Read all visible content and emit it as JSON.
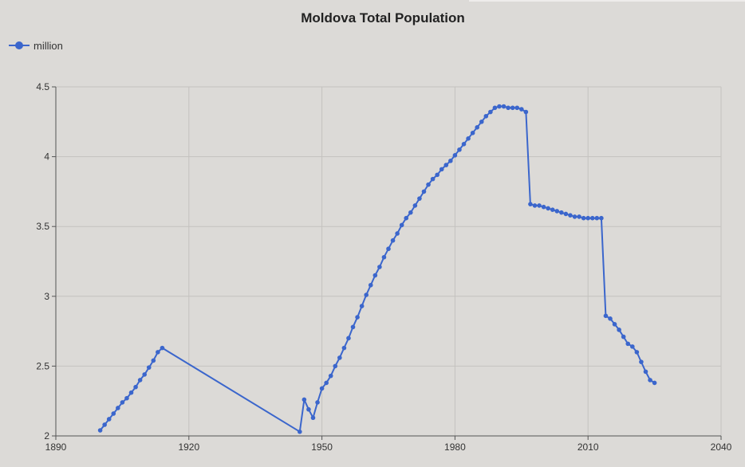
{
  "chart_data": {
    "type": "line",
    "title": "Moldova Total Population",
    "xlabel": "",
    "ylabel": "",
    "xlim": [
      1890,
      2040
    ],
    "ylim": [
      2,
      4.5
    ],
    "x_ticks": [
      "1890",
      "1920",
      "1950",
      "1980",
      "2010",
      "2040"
    ],
    "y_ticks": [
      "2",
      "2.5",
      "3",
      "3.5",
      "4",
      "4.5"
    ],
    "grid": true,
    "legend": "top-left",
    "series": [
      {
        "name": "million",
        "color": "#3b66cc",
        "marker": "circle",
        "points": [
          [
            1900,
            2.04
          ],
          [
            1901,
            2.08
          ],
          [
            1902,
            2.12
          ],
          [
            1903,
            2.16
          ],
          [
            1904,
            2.2
          ],
          [
            1905,
            2.24
          ],
          [
            1906,
            2.27
          ],
          [
            1907,
            2.31
          ],
          [
            1908,
            2.35
          ],
          [
            1909,
            2.4
          ],
          [
            1910,
            2.44
          ],
          [
            1911,
            2.49
          ],
          [
            1912,
            2.54
          ],
          [
            1913,
            2.6
          ],
          [
            1914,
            2.63
          ],
          [
            1945,
            2.03
          ],
          [
            1946,
            2.26
          ],
          [
            1947,
            2.19
          ],
          [
            1948,
            2.13
          ],
          [
            1949,
            2.24
          ],
          [
            1950,
            2.34
          ],
          [
            1951,
            2.38
          ],
          [
            1952,
            2.43
          ],
          [
            1953,
            2.5
          ],
          [
            1954,
            2.56
          ],
          [
            1955,
            2.63
          ],
          [
            1956,
            2.7
          ],
          [
            1957,
            2.78
          ],
          [
            1958,
            2.85
          ],
          [
            1959,
            2.93
          ],
          [
            1960,
            3.01
          ],
          [
            1961,
            3.08
          ],
          [
            1962,
            3.15
          ],
          [
            1963,
            3.21
          ],
          [
            1964,
            3.28
          ],
          [
            1965,
            3.34
          ],
          [
            1966,
            3.4
          ],
          [
            1967,
            3.45
          ],
          [
            1968,
            3.51
          ],
          [
            1969,
            3.56
          ],
          [
            1970,
            3.6
          ],
          [
            1971,
            3.65
          ],
          [
            1972,
            3.7
          ],
          [
            1973,
            3.75
          ],
          [
            1974,
            3.8
          ],
          [
            1975,
            3.84
          ],
          [
            1976,
            3.87
          ],
          [
            1977,
            3.91
          ],
          [
            1978,
            3.94
          ],
          [
            1979,
            3.97
          ],
          [
            1980,
            4.01
          ],
          [
            1981,
            4.05
          ],
          [
            1982,
            4.09
          ],
          [
            1983,
            4.13
          ],
          [
            1984,
            4.17
          ],
          [
            1985,
            4.21
          ],
          [
            1986,
            4.25
          ],
          [
            1987,
            4.29
          ],
          [
            1988,
            4.32
          ],
          [
            1989,
            4.35
          ],
          [
            1990,
            4.36
          ],
          [
            1991,
            4.36
          ],
          [
            1992,
            4.35
          ],
          [
            1993,
            4.35
          ],
          [
            1994,
            4.35
          ],
          [
            1995,
            4.34
          ],
          [
            1996,
            4.32
          ],
          [
            1997,
            3.66
          ],
          [
            1998,
            3.65
          ],
          [
            1999,
            3.65
          ],
          [
            2000,
            3.64
          ],
          [
            2001,
            3.63
          ],
          [
            2002,
            3.62
          ],
          [
            2003,
            3.61
          ],
          [
            2004,
            3.6
          ],
          [
            2005,
            3.59
          ],
          [
            2006,
            3.58
          ],
          [
            2007,
            3.57
          ],
          [
            2008,
            3.57
          ],
          [
            2009,
            3.56
          ],
          [
            2010,
            3.56
          ],
          [
            2011,
            3.56
          ],
          [
            2012,
            3.56
          ],
          [
            2013,
            3.56
          ],
          [
            2014,
            2.86
          ],
          [
            2015,
            2.84
          ],
          [
            2016,
            2.8
          ],
          [
            2017,
            2.76
          ],
          [
            2018,
            2.71
          ],
          [
            2019,
            2.66
          ],
          [
            2020,
            2.64
          ],
          [
            2021,
            2.6
          ],
          [
            2022,
            2.53
          ],
          [
            2023,
            2.46
          ],
          [
            2024,
            2.4
          ],
          [
            2025,
            2.38
          ]
        ]
      }
    ]
  }
}
